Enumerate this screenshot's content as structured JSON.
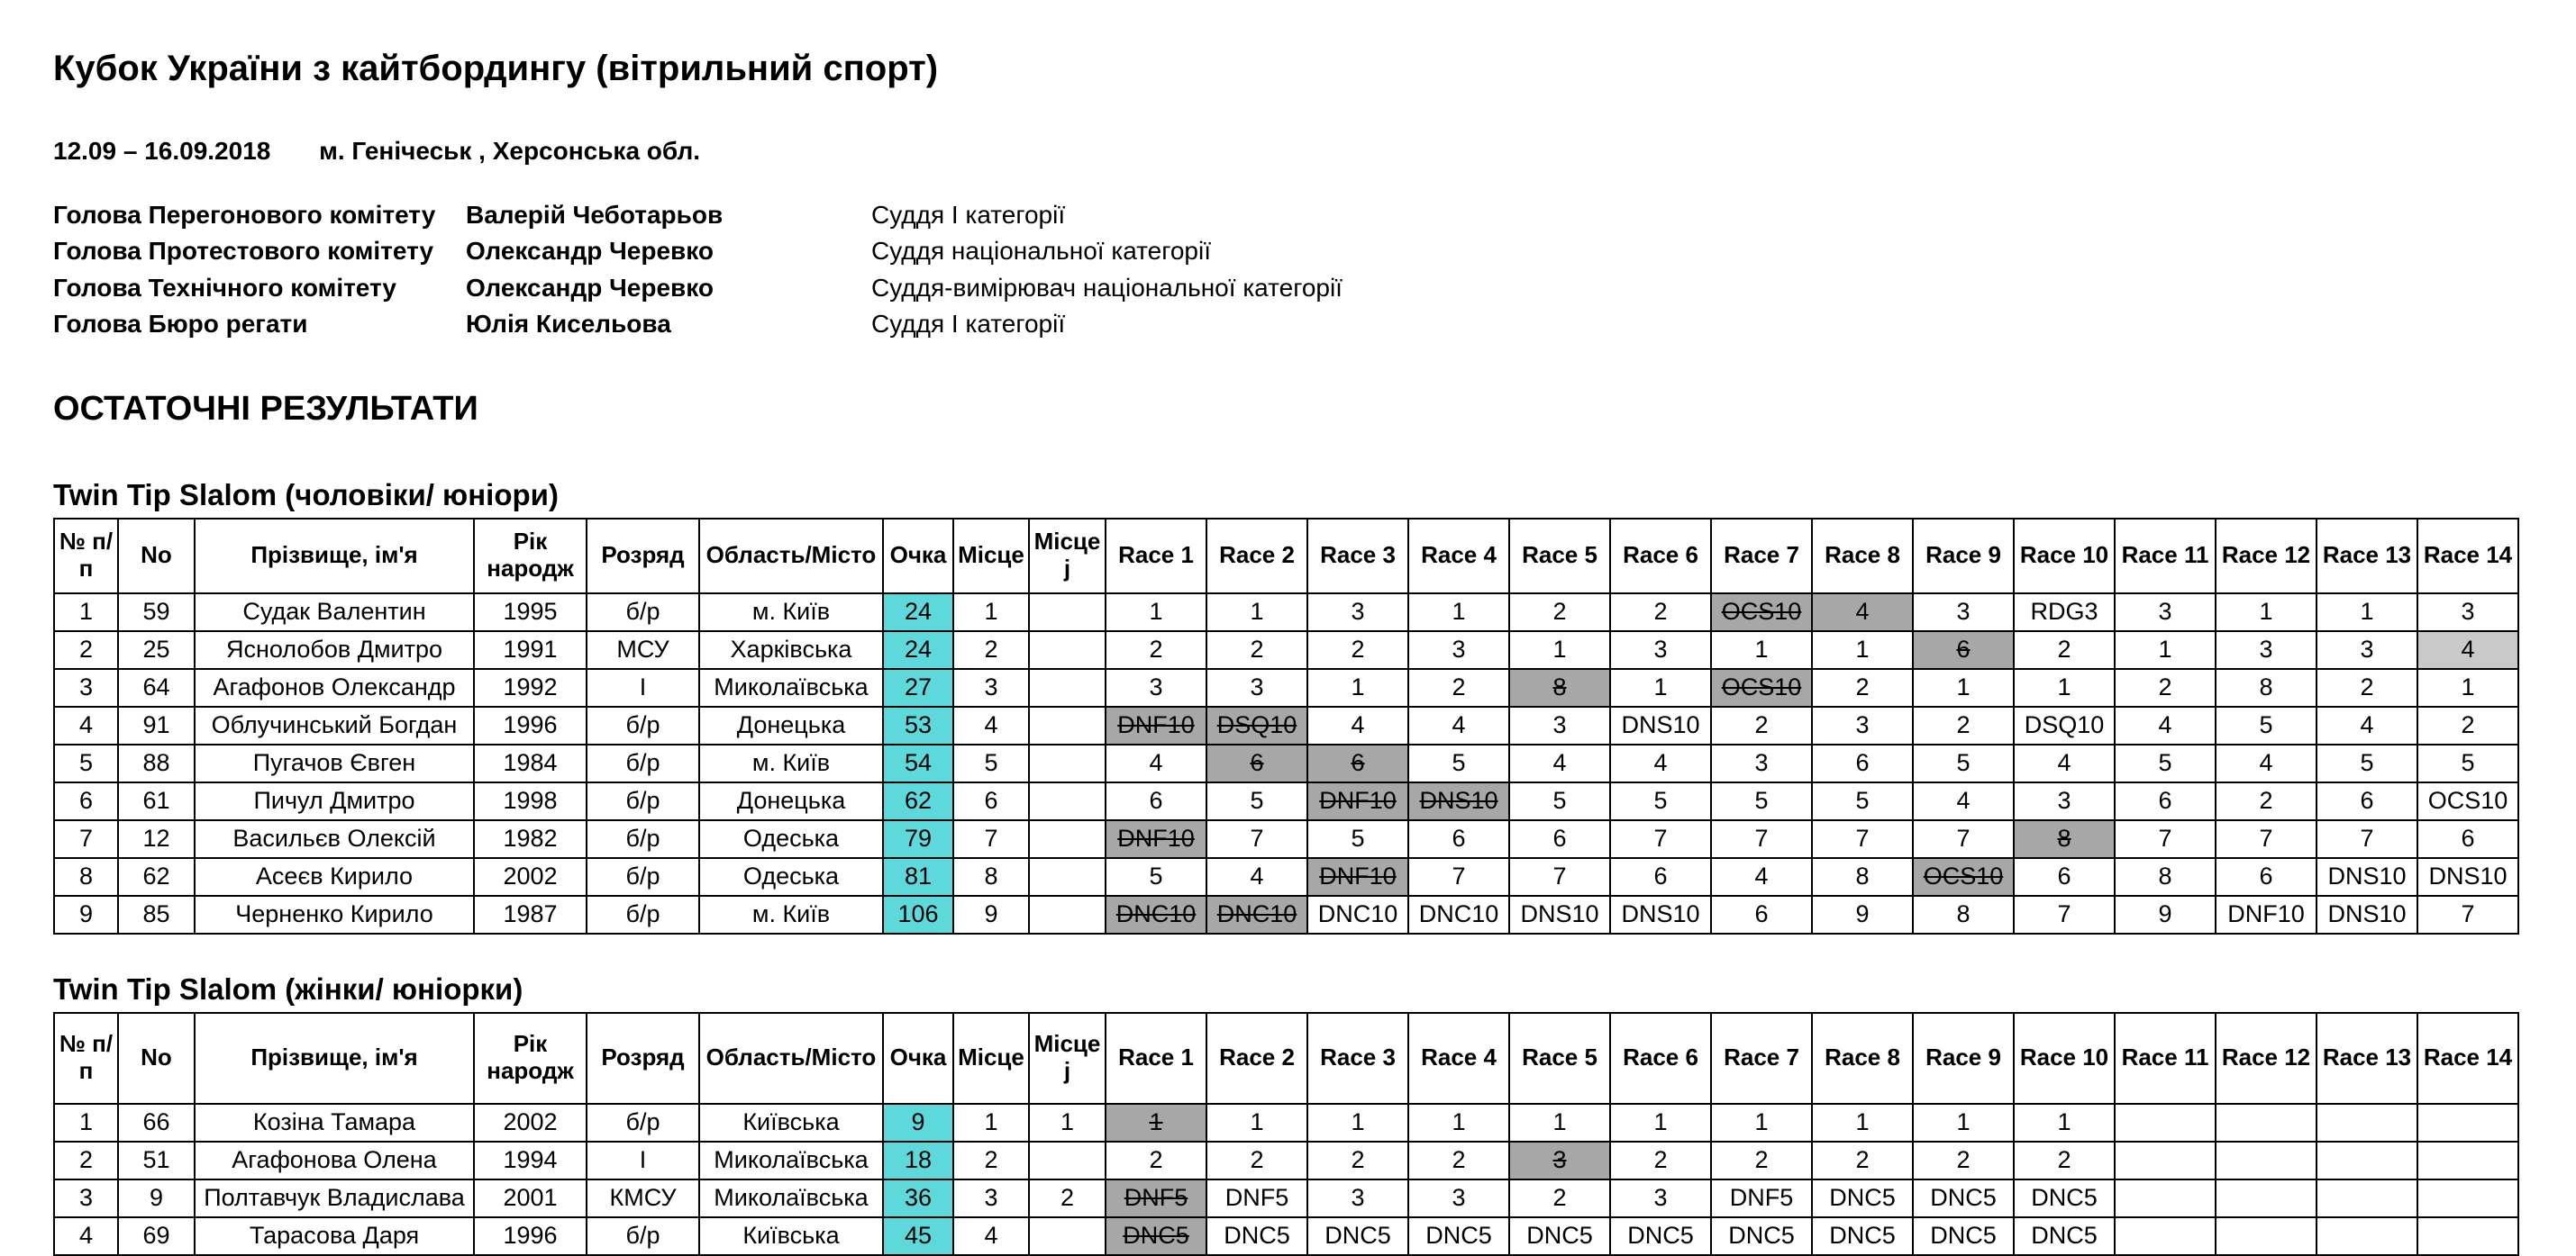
{
  "header": {
    "title": "Кубок України з кайтбордингу (вітрильний спорт)",
    "dates": "12.09 – 16.09.2018",
    "location": "м. Генічеськ , Херсонська обл."
  },
  "officials": [
    {
      "role": "Голова Перегонового комітету",
      "name": "Валерій Чеботарьов",
      "qualification": "Суддя I категорії"
    },
    {
      "role": "Голова Протестового комітету",
      "name": "Олександр Черевко",
      "qualification": "Суддя національної категорії"
    },
    {
      "role": "Голова Технічного комітету",
      "name": "Олександр Черевко",
      "qualification": "Суддя-вимірювач національної категорії"
    },
    {
      "role": "Голова Бюро регати",
      "name": "Юлія Кисельова",
      "qualification": "Суддя I категорії"
    }
  ],
  "results_heading": "ОСТАТОЧНІ РЕЗУЛЬТАТИ",
  "columns": [
    "№ п/п",
    "No",
    "Прізвище, ім'я",
    "Рік народж",
    "Розряд",
    "Область/Місто",
    "Очка",
    "Місце",
    "Місце j",
    "Race 1",
    "Race 2",
    "Race 3",
    "Race 4",
    "Race 5",
    "Race 6",
    "Race 7",
    "Race 8",
    "Race 9",
    "Race 10",
    "Race 11",
    "Race 12",
    "Race 13",
    "Race 14"
  ],
  "tables": [
    {
      "title": "Twin Tip Slalom (чоловіки/ юніори)",
      "rows": [
        {
          "cells": [
            "1",
            "59",
            "Судак Валентин",
            "1995",
            "б/р",
            "м. Київ",
            "24",
            "1",
            ""
          ],
          "races": [
            [
              "1",
              ""
            ],
            [
              "1",
              ""
            ],
            [
              "3",
              ""
            ],
            [
              "1",
              ""
            ],
            [
              "2",
              ""
            ],
            [
              "2",
              ""
            ],
            [
              "OCS10",
              "d"
            ],
            [
              "4",
              "g"
            ],
            [
              "3",
              ""
            ],
            [
              "RDG3",
              ""
            ],
            [
              "3",
              ""
            ],
            [
              "1",
              ""
            ],
            [
              "1",
              ""
            ],
            [
              "3",
              ""
            ]
          ]
        },
        {
          "cells": [
            "2",
            "25",
            "Яснолобов Дмитро",
            "1991",
            "МСУ",
            "Харківська",
            "24",
            "2",
            ""
          ],
          "races": [
            [
              "2",
              ""
            ],
            [
              "2",
              ""
            ],
            [
              "2",
              ""
            ],
            [
              "3",
              ""
            ],
            [
              "1",
              ""
            ],
            [
              "3",
              ""
            ],
            [
              "1",
              ""
            ],
            [
              "1",
              ""
            ],
            [
              "6",
              "d"
            ],
            [
              "2",
              ""
            ],
            [
              "1",
              ""
            ],
            [
              "3",
              ""
            ],
            [
              "3",
              ""
            ],
            [
              "4",
              "gl"
            ]
          ]
        },
        {
          "cells": [
            "3",
            "64",
            "Агафонов Олександр",
            "1992",
            "I",
            "Миколаївська",
            "27",
            "3",
            ""
          ],
          "races": [
            [
              "3",
              ""
            ],
            [
              "3",
              ""
            ],
            [
              "1",
              ""
            ],
            [
              "2",
              ""
            ],
            [
              "8",
              "d"
            ],
            [
              "1",
              ""
            ],
            [
              "OCS10",
              "d"
            ],
            [
              "2",
              ""
            ],
            [
              "1",
              ""
            ],
            [
              "1",
              ""
            ],
            [
              "2",
              ""
            ],
            [
              "8",
              ""
            ],
            [
              "2",
              ""
            ],
            [
              "1",
              ""
            ]
          ]
        },
        {
          "cells": [
            "4",
            "91",
            "Облучинський Богдан",
            "1996",
            "б/р",
            "Донецька",
            "53",
            "4",
            ""
          ],
          "races": [
            [
              "DNF10",
              "d"
            ],
            [
              "DSQ10",
              "d"
            ],
            [
              "4",
              ""
            ],
            [
              "4",
              ""
            ],
            [
              "3",
              ""
            ],
            [
              "DNS10",
              ""
            ],
            [
              "2",
              ""
            ],
            [
              "3",
              ""
            ],
            [
              "2",
              ""
            ],
            [
              "DSQ10",
              ""
            ],
            [
              "4",
              ""
            ],
            [
              "5",
              ""
            ],
            [
              "4",
              ""
            ],
            [
              "2",
              ""
            ]
          ]
        },
        {
          "cells": [
            "5",
            "88",
            "Пугачов Євген",
            "1984",
            "б/р",
            "м. Київ",
            "54",
            "5",
            ""
          ],
          "races": [
            [
              "4",
              ""
            ],
            [
              "6",
              "d"
            ],
            [
              "6",
              "d"
            ],
            [
              "5",
              ""
            ],
            [
              "4",
              ""
            ],
            [
              "4",
              ""
            ],
            [
              "3",
              ""
            ],
            [
              "6",
              ""
            ],
            [
              "5",
              ""
            ],
            [
              "4",
              ""
            ],
            [
              "5",
              ""
            ],
            [
              "4",
              ""
            ],
            [
              "5",
              ""
            ],
            [
              "5",
              ""
            ]
          ]
        },
        {
          "cells": [
            "6",
            "61",
            "Пичул Дмитро",
            "1998",
            "б/р",
            "Донецька",
            "62",
            "6",
            ""
          ],
          "races": [
            [
              "6",
              ""
            ],
            [
              "5",
              ""
            ],
            [
              "DNF10",
              "d"
            ],
            [
              "DNS10",
              "d"
            ],
            [
              "5",
              ""
            ],
            [
              "5",
              ""
            ],
            [
              "5",
              ""
            ],
            [
              "5",
              ""
            ],
            [
              "4",
              ""
            ],
            [
              "3",
              ""
            ],
            [
              "6",
              ""
            ],
            [
              "2",
              ""
            ],
            [
              "6",
              ""
            ],
            [
              "OCS10",
              ""
            ]
          ]
        },
        {
          "cells": [
            "7",
            "12",
            "Васильєв Олексій",
            "1982",
            "б/р",
            "Одеська",
            "79",
            "7",
            ""
          ],
          "races": [
            [
              "DNF10",
              "d"
            ],
            [
              "7",
              ""
            ],
            [
              "5",
              ""
            ],
            [
              "6",
              ""
            ],
            [
              "6",
              ""
            ],
            [
              "7",
              ""
            ],
            [
              "7",
              ""
            ],
            [
              "7",
              ""
            ],
            [
              "7",
              ""
            ],
            [
              "8",
              "d"
            ],
            [
              "7",
              ""
            ],
            [
              "7",
              ""
            ],
            [
              "7",
              ""
            ],
            [
              "6",
              ""
            ]
          ]
        },
        {
          "cells": [
            "8",
            "62",
            "Асеєв Кирило",
            "2002",
            "б/р",
            "Одеська",
            "81",
            "8",
            ""
          ],
          "races": [
            [
              "5",
              ""
            ],
            [
              "4",
              ""
            ],
            [
              "DNF10",
              "d"
            ],
            [
              "7",
              ""
            ],
            [
              "7",
              ""
            ],
            [
              "6",
              ""
            ],
            [
              "4",
              ""
            ],
            [
              "8",
              ""
            ],
            [
              "OCS10",
              "d"
            ],
            [
              "6",
              ""
            ],
            [
              "8",
              ""
            ],
            [
              "6",
              ""
            ],
            [
              "DNS10",
              ""
            ],
            [
              "DNS10",
              ""
            ]
          ]
        },
        {
          "cells": [
            "9",
            "85",
            "Черненко Кирило",
            "1987",
            "б/р",
            "м. Київ",
            "106",
            "9",
            ""
          ],
          "races": [
            [
              "DNC10",
              "d"
            ],
            [
              "DNC10",
              "d"
            ],
            [
              "DNC10",
              ""
            ],
            [
              "DNC10",
              ""
            ],
            [
              "DNS10",
              ""
            ],
            [
              "DNS10",
              ""
            ],
            [
              "6",
              ""
            ],
            [
              "9",
              ""
            ],
            [
              "8",
              ""
            ],
            [
              "7",
              ""
            ],
            [
              "9",
              ""
            ],
            [
              "DNF10",
              ""
            ],
            [
              "DNS10",
              ""
            ],
            [
              "7",
              ""
            ]
          ]
        }
      ]
    },
    {
      "title": "Twin Tip Slalom (жінки/ юніорки)",
      "rows": [
        {
          "cells": [
            "1",
            "66",
            "Козіна Тамара",
            "2002",
            "б/р",
            "Київська",
            "9",
            "1",
            "1"
          ],
          "races": [
            [
              "1",
              "d"
            ],
            [
              "1",
              ""
            ],
            [
              "1",
              ""
            ],
            [
              "1",
              ""
            ],
            [
              "1",
              ""
            ],
            [
              "1",
              ""
            ],
            [
              "1",
              ""
            ],
            [
              "1",
              ""
            ],
            [
              "1",
              ""
            ],
            [
              "1",
              ""
            ],
            [
              "",
              ""
            ],
            [
              "",
              ""
            ],
            [
              "",
              ""
            ],
            [
              "",
              ""
            ]
          ]
        },
        {
          "cells": [
            "2",
            "51",
            "Агафонова Олена",
            "1994",
            "I",
            "Миколаївська",
            "18",
            "2",
            ""
          ],
          "races": [
            [
              "2",
              ""
            ],
            [
              "2",
              ""
            ],
            [
              "2",
              ""
            ],
            [
              "2",
              ""
            ],
            [
              "3",
              "d"
            ],
            [
              "2",
              ""
            ],
            [
              "2",
              ""
            ],
            [
              "2",
              ""
            ],
            [
              "2",
              ""
            ],
            [
              "2",
              ""
            ],
            [
              "",
              ""
            ],
            [
              "",
              ""
            ],
            [
              "",
              ""
            ],
            [
              "",
              ""
            ]
          ]
        },
        {
          "cells": [
            "3",
            "9",
            "Полтавчук Владислава",
            "2001",
            "КМСУ",
            "Миколаївська",
            "36",
            "3",
            "2"
          ],
          "races": [
            [
              "DNF5",
              "d"
            ],
            [
              "DNF5",
              ""
            ],
            [
              "3",
              ""
            ],
            [
              "3",
              ""
            ],
            [
              "2",
              ""
            ],
            [
              "3",
              ""
            ],
            [
              "DNF5",
              ""
            ],
            [
              "DNC5",
              ""
            ],
            [
              "DNC5",
              ""
            ],
            [
              "DNC5",
              ""
            ],
            [
              "",
              ""
            ],
            [
              "",
              ""
            ],
            [
              "",
              ""
            ],
            [
              "",
              ""
            ]
          ]
        },
        {
          "cells": [
            "4",
            "69",
            "Тарасова Даря",
            "1996",
            "б/р",
            "Київська",
            "45",
            "4",
            ""
          ],
          "races": [
            [
              "DNC5",
              "d"
            ],
            [
              "DNC5",
              ""
            ],
            [
              "DNC5",
              ""
            ],
            [
              "DNC5",
              ""
            ],
            [
              "DNC5",
              ""
            ],
            [
              "DNC5",
              ""
            ],
            [
              "DNC5",
              ""
            ],
            [
              "DNC5",
              ""
            ],
            [
              "DNC5",
              ""
            ],
            [
              "DNC5",
              ""
            ],
            [
              "",
              ""
            ],
            [
              "",
              ""
            ],
            [
              "",
              ""
            ],
            [
              "",
              ""
            ]
          ]
        }
      ]
    }
  ],
  "colors": {
    "points_bg": "#5dd9dc",
    "discard_bg": "#a7a7a7",
    "discard_light_bg": "#c9c9c9"
  }
}
